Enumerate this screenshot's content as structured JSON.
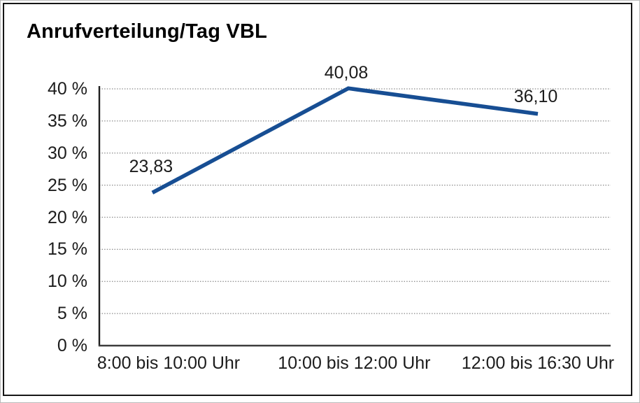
{
  "chart_data": {
    "type": "line",
    "title": "Anrufverteilung/Tag VBL",
    "categories": [
      "8:00 bis 10:00 Uhr",
      "10:00 bis 12:00 Uhr",
      "12:00 bis 16:30 Uhr"
    ],
    "values": [
      23.83,
      40.08,
      36.1
    ],
    "value_labels": [
      "23,83",
      "40,08",
      "36,10"
    ],
    "ytick_labels": [
      "0 %",
      "5 %",
      "10 %",
      "15 %",
      "20 %",
      "25 %",
      "30 %",
      "35 %",
      "40 %"
    ],
    "ylim": [
      0,
      40
    ],
    "ytick_step": 5,
    "xlabel": "",
    "ylabel": "",
    "legend": "none",
    "grid": "horizontal-dotted",
    "line_color": "#174e93",
    "axis_color": "#2b2b2b",
    "gridline_color": "#848484",
    "text_color": "#1c1c1c"
  }
}
